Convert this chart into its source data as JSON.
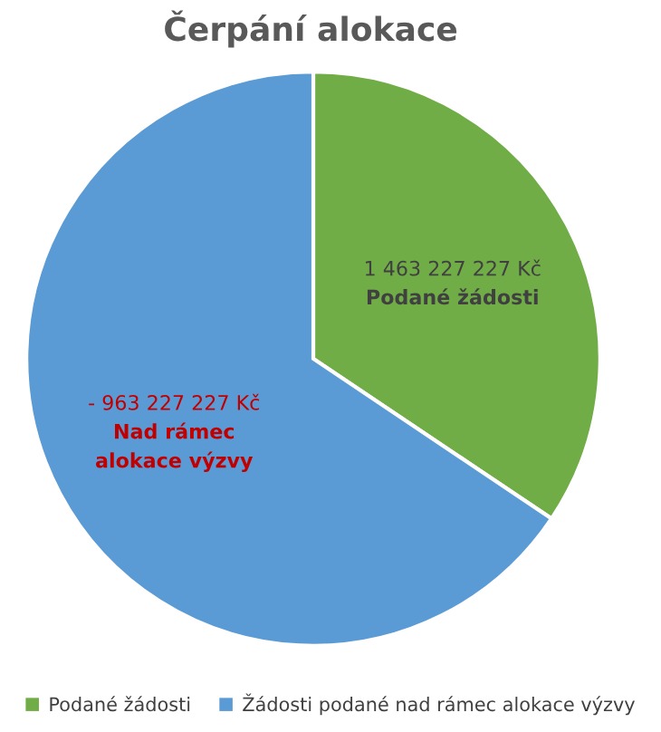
{
  "chart_data": {
    "type": "pie",
    "title": "Čerpání alokace",
    "categories": [
      "Podané žádosti",
      "Žádosti podané nad rámec alokace výzvy"
    ],
    "values": [
      34.4,
      65.6
    ],
    "colors": [
      "#70ad47",
      "#5b9bd5"
    ],
    "annotations": [
      "1 463 227 227 Kč\nPodané žádosti",
      "- 963 227 227 Kč\nNad rámec\nalokace výzvy"
    ],
    "legend": "bottom"
  }
}
